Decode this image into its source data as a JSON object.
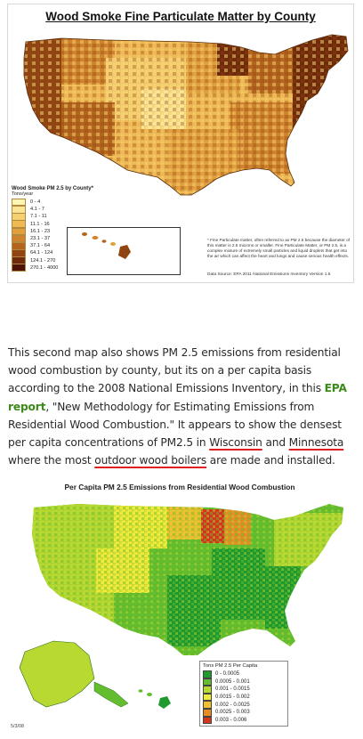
{
  "map1": {
    "title": "Wood Smoke Fine Particulate Matter by County",
    "legend_title": "Wood Smoke PM 2.5 by County*",
    "legend_units": "Tons/year",
    "legend": [
      {
        "label": "0 - 4",
        "color": "#fff6b4"
      },
      {
        "label": "4.1 - 7",
        "color": "#fbe493"
      },
      {
        "label": "7.1 - 11",
        "color": "#f6d070"
      },
      {
        "label": "11.1 - 16",
        "color": "#efb954"
      },
      {
        "label": "16.1 - 23",
        "color": "#e29f3e"
      },
      {
        "label": "23.1 - 37",
        "color": "#cf832c"
      },
      {
        "label": "37.1 - 64",
        "color": "#b4641d"
      },
      {
        "label": "64.1 - 124",
        "color": "#8f4412"
      },
      {
        "label": "124.1 - 270",
        "color": "#6e2a0a"
      },
      {
        "label": "270.1 - 4000",
        "color": "#4e1306"
      }
    ],
    "footnote": "* Fine Particulate matter, often referred to as PM 2.5 because the diameter of this matter is 2.5 microns or smaller. Fine Particulate Matter, or PM 2.5, is a complex mixture of extremely small particles and liquid droplets that get into the air which can affect the heart and lungs and cause serious health effects.",
    "source": "Data Source: EPA 2011 National Emissions Inventory Version 1.5"
  },
  "paragraph": {
    "p1": "This second map also shows PM 2.5 emissions from residential wood combustion by county, but its on a per capita basis according to the 2008 National Emissions Inventory, in this ",
    "link": "EPA report",
    "p2": ", \"New Methodology for Estimating Emissions from Residential Wood Combustion.\" It appears to show the densest per capita concentrations of PM2.5 in ",
    "wisconsin": "Wisconsin",
    "and": " and ",
    "minnesota": "Minnesota",
    "p3": " where the most ",
    "outdoor_wood_boilers": "outdoor wood boilers",
    "p4": " are made and installed."
  },
  "map2": {
    "title": "Per Capita PM 2.5 Emissions from Residential Wood Combustion",
    "legend_title": "Tons PM 2.5 Per Capita",
    "legend": [
      {
        "label": "0 - 0.0005",
        "color": "#1f9a2e"
      },
      {
        "label": "0.0005 - 0.001",
        "color": "#63bd2e"
      },
      {
        "label": "0.001 - 0.0015",
        "color": "#b7d931"
      },
      {
        "label": "0.0015 - 0.002",
        "color": "#f0ea3a"
      },
      {
        "label": "0.002 - 0.0025",
        "color": "#f2bf2f"
      },
      {
        "label": "0.0025 - 0.003",
        "color": "#e98c24"
      },
      {
        "label": "0.003 - 0.006",
        "color": "#d6371c"
      }
    ],
    "date": "5/3/08"
  }
}
